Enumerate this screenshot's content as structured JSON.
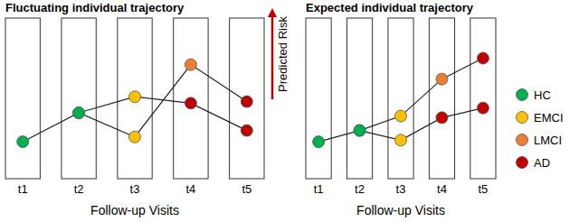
{
  "chart_data": [
    {
      "type": "line",
      "title": "Fluctuating individual trajectory",
      "categories": [
        "t1",
        "t2",
        "t3",
        "t4",
        "t5"
      ],
      "xlabel": "Follow-up Visits",
      "ylabel": "Predicted Risk",
      "ylim": [
        0,
        10
      ],
      "tick_labels": "x",
      "marker": "circle",
      "line_style": "solid",
      "series": [
        {
          "values": [
            2.3,
            4.1,
            2.6,
            7.1,
            4.8
          ],
          "colors": [
            "#00b050",
            "#00b050",
            "#ffc000",
            "#ed7d31",
            "#c00000"
          ]
        },
        {
          "values": [
            null,
            4.1,
            5.1,
            4.7,
            3.0
          ],
          "colors": [
            null,
            "#00b050",
            "#ffc000",
            "#c00000",
            "#c00000"
          ]
        }
      ]
    },
    {
      "type": "line",
      "title": "Expected individual trajectory",
      "categories": [
        "t1",
        "t2",
        "t3",
        "t4",
        "t5"
      ],
      "xlabel": "Follow-up Visits",
      "ylim": [
        0,
        10
      ],
      "tick_labels": "x",
      "marker": "circle",
      "line_style": "solid",
      "legend": "right",
      "legend_entries": [
        {
          "name": "HC",
          "color": "#00b050"
        },
        {
          "name": "EMCI",
          "color": "#ffc000"
        },
        {
          "name": "LMCI",
          "color": "#ed7d31"
        },
        {
          "name": "AD",
          "color": "#c00000"
        }
      ],
      "series": [
        {
          "values": [
            2.3,
            3.0,
            3.9,
            6.2,
            7.5
          ],
          "colors": [
            "#00b050",
            "#00b050",
            "#ffc000",
            "#ed7d31",
            "#c00000"
          ]
        },
        {
          "values": [
            null,
            3.0,
            2.4,
            3.8,
            4.4
          ],
          "colors": [
            null,
            "#00b050",
            "#ffc000",
            "#c00000",
            "#c00000"
          ]
        }
      ]
    }
  ]
}
